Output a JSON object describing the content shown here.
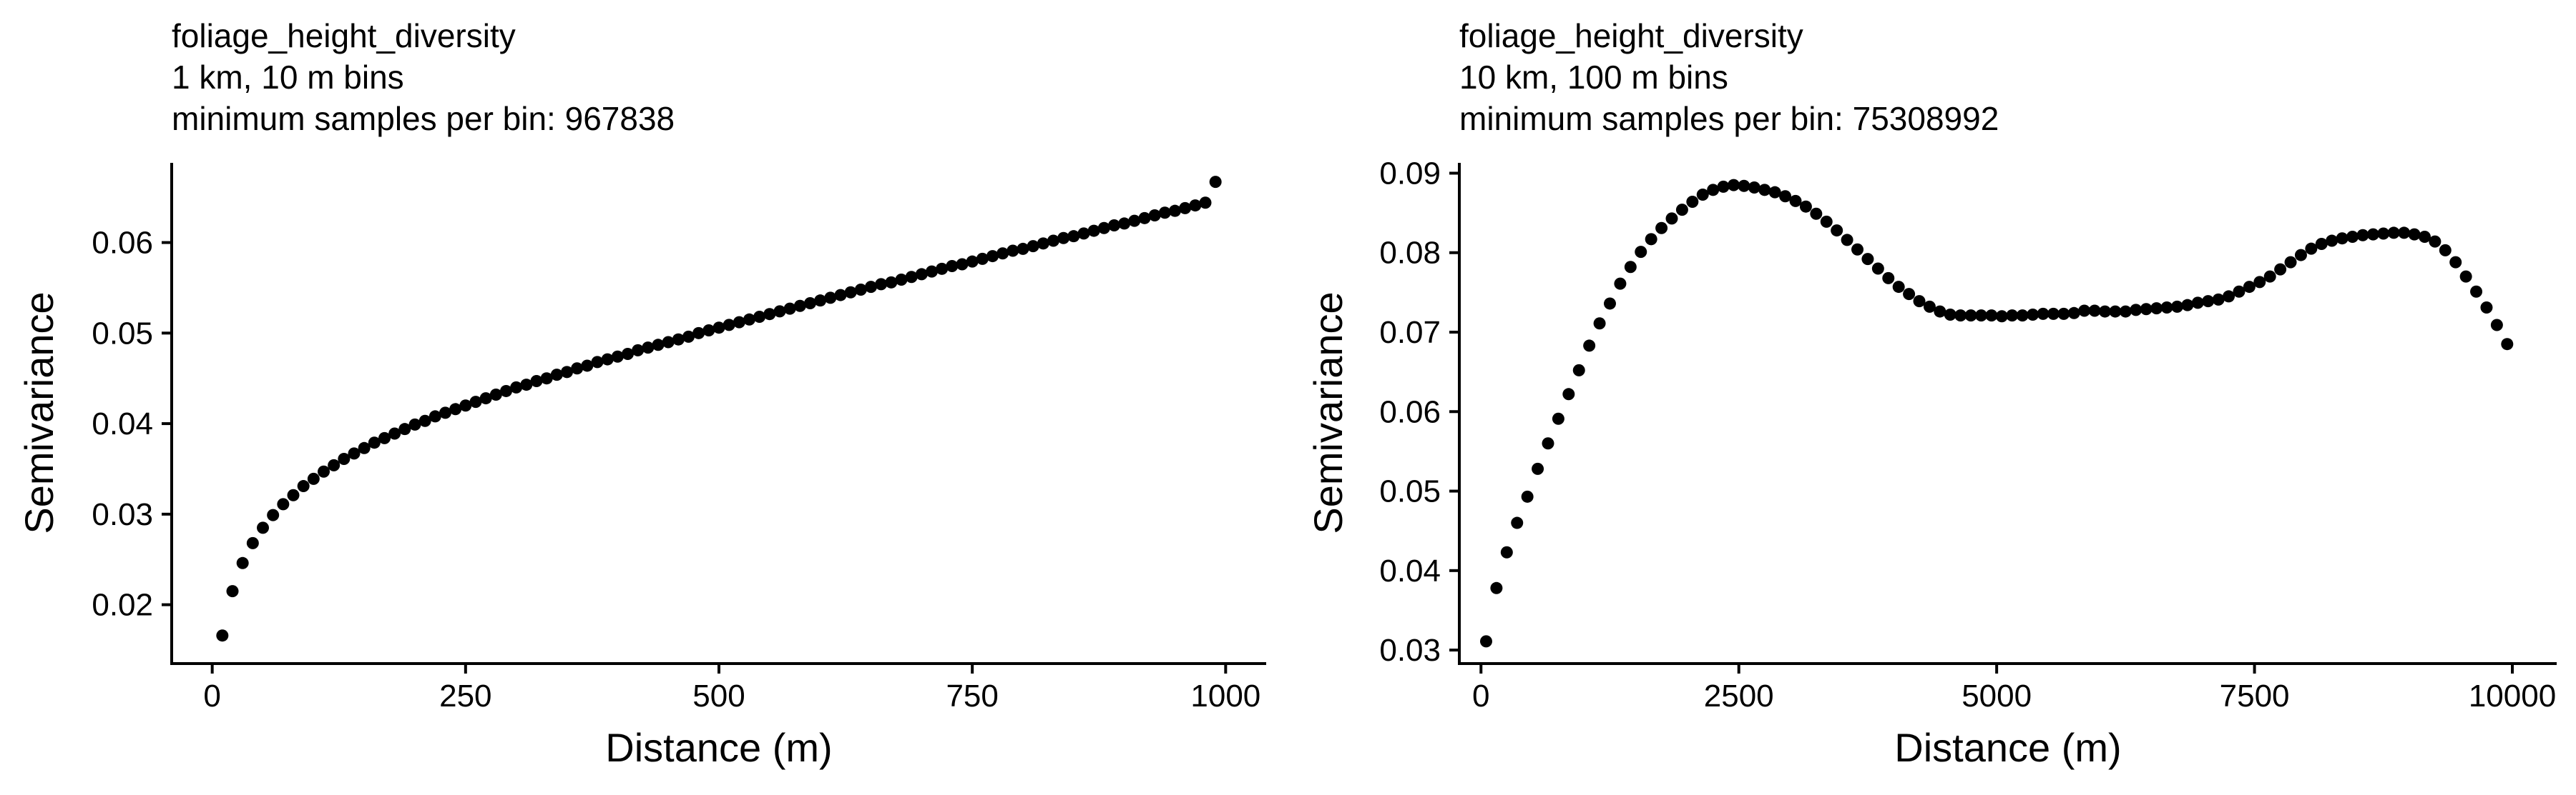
{
  "chart_data": [
    {
      "type": "scatter",
      "title_lines": [
        "foliage_height_diversity",
        "1 km, 10 m bins",
        "minimum samples per bin: 967838"
      ],
      "xlabel": "Distance (m)",
      "ylabel": "Semivariance",
      "xlim": [
        -40,
        1040
      ],
      "ylim": [
        0.0135,
        0.0688
      ],
      "x_ticks": [
        0,
        250,
        500,
        750,
        1000
      ],
      "x_tick_labels": [
        "0",
        "250",
        "500",
        "750",
        "1000"
      ],
      "y_ticks": [
        0.02,
        0.03,
        0.04,
        0.05,
        0.06
      ],
      "y_tick_labels": [
        "0.02",
        "0.03",
        "0.04",
        "0.05",
        "0.06"
      ],
      "grid": false,
      "marker_color": "#000000",
      "points": [
        [
          10,
          0.0166
        ],
        [
          20,
          0.0215
        ],
        [
          30,
          0.0246
        ],
        [
          40,
          0.0268
        ],
        [
          50,
          0.0285
        ],
        [
          60,
          0.0299
        ],
        [
          70,
          0.0311
        ],
        [
          80,
          0.0321
        ],
        [
          90,
          0.0331
        ],
        [
          100,
          0.0339
        ],
        [
          110,
          0.0347
        ],
        [
          120,
          0.0354
        ],
        [
          130,
          0.0361
        ],
        [
          140,
          0.0367
        ],
        [
          150,
          0.0373
        ],
        [
          160,
          0.0379
        ],
        [
          170,
          0.0384
        ],
        [
          180,
          0.0389
        ],
        [
          190,
          0.0394
        ],
        [
          200,
          0.0399
        ],
        [
          210,
          0.0403
        ],
        [
          220,
          0.0408
        ],
        [
          230,
          0.0412
        ],
        [
          240,
          0.0416
        ],
        [
          250,
          0.042
        ],
        [
          260,
          0.0424
        ],
        [
          270,
          0.0428
        ],
        [
          280,
          0.0432
        ],
        [
          290,
          0.0436
        ],
        [
          300,
          0.044
        ],
        [
          310,
          0.0443
        ],
        [
          320,
          0.0447
        ],
        [
          330,
          0.045
        ],
        [
          340,
          0.0454
        ],
        [
          350,
          0.0457
        ],
        [
          360,
          0.0461
        ],
        [
          370,
          0.0464
        ],
        [
          380,
          0.0468
        ],
        [
          390,
          0.0471
        ],
        [
          400,
          0.0474
        ],
        [
          410,
          0.0477
        ],
        [
          420,
          0.0481
        ],
        [
          430,
          0.0484
        ],
        [
          440,
          0.0487
        ],
        [
          450,
          0.049
        ],
        [
          460,
          0.0493
        ],
        [
          470,
          0.0496
        ],
        [
          480,
          0.05
        ],
        [
          490,
          0.0503
        ],
        [
          500,
          0.0506
        ],
        [
          510,
          0.0509
        ],
        [
          520,
          0.0512
        ],
        [
          530,
          0.0515
        ],
        [
          540,
          0.0518
        ],
        [
          550,
          0.0521
        ],
        [
          560,
          0.0524
        ],
        [
          570,
          0.0527
        ],
        [
          580,
          0.053
        ],
        [
          590,
          0.0533
        ],
        [
          600,
          0.0536
        ],
        [
          610,
          0.0539
        ],
        [
          620,
          0.0542
        ],
        [
          630,
          0.0545
        ],
        [
          640,
          0.0548
        ],
        [
          650,
          0.0551
        ],
        [
          660,
          0.0554
        ],
        [
          670,
          0.0556
        ],
        [
          680,
          0.0559
        ],
        [
          690,
          0.0562
        ],
        [
          700,
          0.0565
        ],
        [
          710,
          0.0568
        ],
        [
          720,
          0.0571
        ],
        [
          730,
          0.0574
        ],
        [
          740,
          0.0576
        ],
        [
          750,
          0.0579
        ],
        [
          760,
          0.0582
        ],
        [
          770,
          0.0585
        ],
        [
          780,
          0.0588
        ],
        [
          790,
          0.0591
        ],
        [
          800,
          0.0593
        ],
        [
          810,
          0.0596
        ],
        [
          820,
          0.0599
        ],
        [
          830,
          0.0602
        ],
        [
          840,
          0.0605
        ],
        [
          850,
          0.0607
        ],
        [
          860,
          0.061
        ],
        [
          870,
          0.0613
        ],
        [
          880,
          0.0616
        ],
        [
          890,
          0.0619
        ],
        [
          900,
          0.0621
        ],
        [
          910,
          0.0624
        ],
        [
          920,
          0.0627
        ],
        [
          930,
          0.063
        ],
        [
          940,
          0.0633
        ],
        [
          950,
          0.0635
        ],
        [
          960,
          0.0638
        ],
        [
          970,
          0.0641
        ],
        [
          980,
          0.0644
        ],
        [
          990,
          0.0667
        ]
      ]
    },
    {
      "type": "scatter",
      "title_lines": [
        "foliage_height_diversity",
        "10 km, 100 m bins",
        "minimum samples per bin: 75308992"
      ],
      "xlabel": "Distance (m)",
      "ylabel": "Semivariance",
      "xlim": [
        -210,
        10430
      ],
      "ylim": [
        0.0283,
        0.0913
      ],
      "x_ticks": [
        0,
        2500,
        5000,
        7500,
        10000
      ],
      "x_tick_labels": [
        "0",
        "2500",
        "5000",
        "7500",
        "10000"
      ],
      "y_ticks": [
        0.03,
        0.04,
        0.05,
        0.06,
        0.07,
        0.08,
        0.09
      ],
      "y_tick_labels": [
        "0.03",
        "0.04",
        "0.05",
        "0.06",
        "0.07",
        "0.08",
        "0.09"
      ],
      "grid": false,
      "marker_color": "#000000",
      "points": [
        [
          50,
          0.0311
        ],
        [
          150,
          0.0378
        ],
        [
          250,
          0.0423
        ],
        [
          350,
          0.046
        ],
        [
          450,
          0.0493
        ],
        [
          550,
          0.0528
        ],
        [
          650,
          0.056
        ],
        [
          750,
          0.0591
        ],
        [
          850,
          0.0622
        ],
        [
          950,
          0.0652
        ],
        [
          1050,
          0.0683
        ],
        [
          1150,
          0.0711
        ],
        [
          1250,
          0.0736
        ],
        [
          1350,
          0.0761
        ],
        [
          1450,
          0.0782
        ],
        [
          1550,
          0.0801
        ],
        [
          1650,
          0.0817
        ],
        [
          1750,
          0.0831
        ],
        [
          1850,
          0.0843
        ],
        [
          1950,
          0.0854
        ],
        [
          2050,
          0.0864
        ],
        [
          2150,
          0.0873
        ],
        [
          2250,
          0.0879
        ],
        [
          2350,
          0.0883
        ],
        [
          2450,
          0.0885
        ],
        [
          2550,
          0.0884
        ],
        [
          2650,
          0.0882
        ],
        [
          2750,
          0.0879
        ],
        [
          2850,
          0.0876
        ],
        [
          2950,
          0.0871
        ],
        [
          3050,
          0.0865
        ],
        [
          3150,
          0.0858
        ],
        [
          3250,
          0.0849
        ],
        [
          3350,
          0.0839
        ],
        [
          3450,
          0.0828
        ],
        [
          3550,
          0.0816
        ],
        [
          3650,
          0.0804
        ],
        [
          3750,
          0.0792
        ],
        [
          3850,
          0.078
        ],
        [
          3950,
          0.0768
        ],
        [
          4050,
          0.0757
        ],
        [
          4150,
          0.0748
        ],
        [
          4250,
          0.0739
        ],
        [
          4350,
          0.0732
        ],
        [
          4450,
          0.0726
        ],
        [
          4550,
          0.0722
        ],
        [
          4650,
          0.0721
        ],
        [
          4750,
          0.0721
        ],
        [
          4850,
          0.0721
        ],
        [
          4950,
          0.0721
        ],
        [
          5050,
          0.072
        ],
        [
          5150,
          0.0721
        ],
        [
          5250,
          0.0721
        ],
        [
          5350,
          0.0722
        ],
        [
          5450,
          0.0723
        ],
        [
          5550,
          0.0723
        ],
        [
          5650,
          0.0723
        ],
        [
          5750,
          0.0724
        ],
        [
          5850,
          0.0727
        ],
        [
          5950,
          0.0727
        ],
        [
          6050,
          0.0726
        ],
        [
          6150,
          0.0726
        ],
        [
          6250,
          0.0726
        ],
        [
          6350,
          0.0728
        ],
        [
          6450,
          0.0729
        ],
        [
          6550,
          0.073
        ],
        [
          6650,
          0.0731
        ],
        [
          6750,
          0.0732
        ],
        [
          6850,
          0.0734
        ],
        [
          6950,
          0.0737
        ],
        [
          7050,
          0.0739
        ],
        [
          7150,
          0.0741
        ],
        [
          7250,
          0.0745
        ],
        [
          7350,
          0.0751
        ],
        [
          7450,
          0.0757
        ],
        [
          7550,
          0.0763
        ],
        [
          7650,
          0.077
        ],
        [
          7750,
          0.0779
        ],
        [
          7850,
          0.0788
        ],
        [
          7950,
          0.0797
        ],
        [
          8050,
          0.0805
        ],
        [
          8150,
          0.0811
        ],
        [
          8250,
          0.0815
        ],
        [
          8350,
          0.0818
        ],
        [
          8450,
          0.082
        ],
        [
          8550,
          0.0822
        ],
        [
          8650,
          0.0823
        ],
        [
          8750,
          0.0824
        ],
        [
          8850,
          0.0825
        ],
        [
          8950,
          0.0825
        ],
        [
          9050,
          0.0823
        ],
        [
          9150,
          0.082
        ],
        [
          9250,
          0.0814
        ],
        [
          9350,
          0.0803
        ],
        [
          9450,
          0.0788
        ],
        [
          9550,
          0.077
        ],
        [
          9650,
          0.0751
        ],
        [
          9750,
          0.0731
        ],
        [
          9850,
          0.0709
        ],
        [
          9950,
          0.0685
        ]
      ]
    }
  ]
}
